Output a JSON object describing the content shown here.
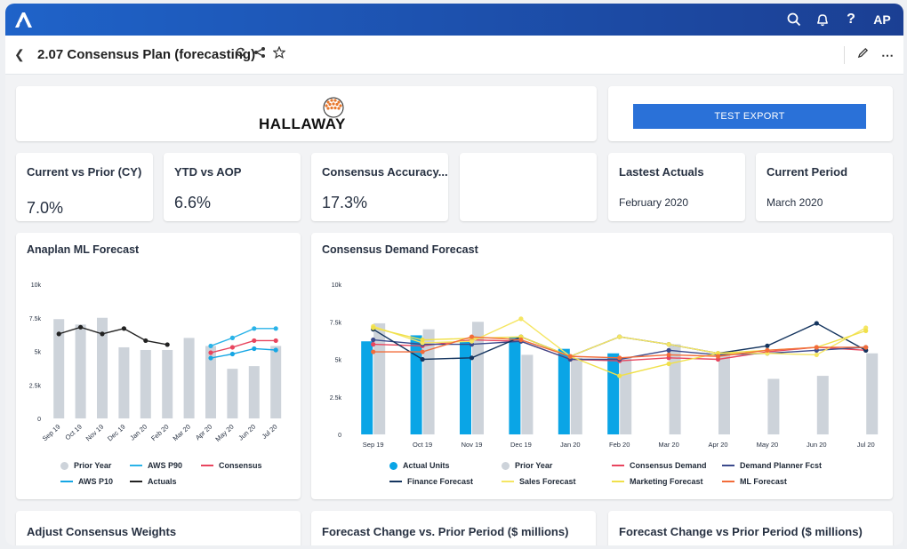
{
  "header": {
    "avatar": "AP"
  },
  "title": {
    "text": "2.07 Consensus Plan (forecasting)"
  },
  "logo_card": {
    "brand": "HALLAWAY"
  },
  "export": {
    "label": "TEST EXPORT"
  },
  "kpis": [
    {
      "label": "Current vs Prior (CY)",
      "value": "7.0%"
    },
    {
      "label": "YTD vs AOP",
      "value": "6.6%"
    },
    {
      "label": "Consensus Accuracy...",
      "value": "17.3%"
    },
    {
      "label": "",
      "value": ""
    },
    {
      "label": "Lastest Actuals",
      "value": "February 2020"
    },
    {
      "label": "Current Period",
      "value": "March 2020"
    }
  ],
  "ml_chart": {
    "title": "Anaplan ML Forecast",
    "legend": [
      "Prior Year",
      "AWS P90",
      "Consensus",
      "AWS P10",
      "Actuals"
    ]
  },
  "demand_chart": {
    "title": "Consensus Demand Forecast",
    "legend": [
      "Actual Units",
      "Prior Year",
      "Consensus Demand",
      "Demand Planner Fcst",
      "Finance Forecast",
      "Sales Forecast",
      "Marketing Forecast",
      "ML Forecast"
    ]
  },
  "bottom": {
    "weights": "Adjust Consensus Weights",
    "change1": "Forecast Change vs. Prior Period ($ millions)",
    "change2": "Forecast Change vs Prior Period ($ millions)"
  },
  "colors": {
    "prior_year": "#cdd3da",
    "actual": "#0aa5e6",
    "p90": "#2ab3e8",
    "p10": "#15a6e4",
    "consensus": "#e8455e",
    "actuals_line": "#222222",
    "dp": "#3b4a8c",
    "finance": "#15355f",
    "sales": "#f5e663",
    "marketing": "#f0e04a",
    "ml": "#f26c3a"
  },
  "chart_data": [
    {
      "type": "bar",
      "title": "Anaplan ML Forecast",
      "categories": [
        "Sep 19",
        "Oct 19",
        "Nov 19",
        "Dec 19",
        "Jan 20",
        "Feb 20",
        "Mar 20",
        "Apr 20",
        "May 20",
        "Jun 20",
        "Jul 20"
      ],
      "ylim": [
        0,
        10000
      ],
      "yticks": [
        "0",
        "2.5k",
        "5k",
        "7.5k",
        "10k"
      ],
      "series": [
        {
          "name": "Prior Year",
          "kind": "bar",
          "values": [
            7400,
            7000,
            7500,
            5300,
            5100,
            5100,
            6000,
            5400,
            3700,
            3900,
            5400
          ]
        },
        {
          "name": "Actuals",
          "kind": "line",
          "values": [
            6300,
            6800,
            6300,
            6700,
            5800,
            5500,
            null,
            null,
            null,
            null,
            null
          ]
        },
        {
          "name": "AWS P90",
          "kind": "line",
          "values": [
            null,
            null,
            null,
            null,
            null,
            null,
            null,
            5400,
            6000,
            6700,
            6700
          ]
        },
        {
          "name": "Consensus",
          "kind": "line",
          "values": [
            null,
            null,
            null,
            null,
            null,
            null,
            null,
            4900,
            5300,
            5800,
            5800
          ]
        },
        {
          "name": "AWS P10",
          "kind": "line",
          "values": [
            null,
            null,
            null,
            null,
            null,
            null,
            null,
            4500,
            4800,
            5200,
            5100
          ]
        }
      ]
    },
    {
      "type": "bar",
      "title": "Consensus Demand Forecast",
      "categories": [
        "Sep 19",
        "Oct 19",
        "Nov 19",
        "Dec 19",
        "Jan 20",
        "Feb 20",
        "Mar 20",
        "Apr 20",
        "May 20",
        "Jun 20",
        "Jul 20"
      ],
      "ylim": [
        0,
        10000
      ],
      "yticks": [
        "0",
        "2.5k",
        "5k",
        "7.5k",
        "10k"
      ],
      "series": [
        {
          "name": "Actual Units",
          "kind": "bar",
          "values": [
            6200,
            6600,
            6200,
            6500,
            5700,
            5400,
            null,
            null,
            null,
            null,
            null
          ]
        },
        {
          "name": "Prior Year",
          "kind": "bar",
          "values": [
            7400,
            7000,
            7500,
            5300,
            5100,
            5100,
            6000,
            5400,
            3700,
            3900,
            5400
          ]
        },
        {
          "name": "Consensus Demand",
          "kind": "line",
          "values": [
            6000,
            5900,
            6300,
            6200,
            5000,
            4900,
            5100,
            5000,
            5500,
            5800,
            5600
          ]
        },
        {
          "name": "Demand Planner Fcst",
          "kind": "line",
          "values": [
            6300,
            6000,
            6000,
            6200,
            5000,
            5000,
            5600,
            5300,
            5400,
            5600,
            5800
          ]
        },
        {
          "name": "Finance Forecast",
          "kind": "line",
          "values": [
            7000,
            5000,
            5100,
            6500,
            5200,
            6500,
            6000,
            5400,
            5900,
            7400,
            5600
          ]
        },
        {
          "name": "Sales Forecast",
          "kind": "line",
          "values": [
            7200,
            6100,
            6200,
            7700,
            5200,
            6500,
            6000,
            5400,
            5400,
            5300,
            7100
          ]
        },
        {
          "name": "Marketing Forecast",
          "kind": "line",
          "values": [
            7100,
            6300,
            6400,
            6500,
            5200,
            3900,
            4700,
            5400,
            5600,
            5800,
            6900
          ]
        },
        {
          "name": "ML Forecast",
          "kind": "line",
          "values": [
            5500,
            5500,
            6500,
            6300,
            5200,
            5100,
            5300,
            5200,
            5600,
            5800,
            5800
          ]
        }
      ]
    }
  ]
}
